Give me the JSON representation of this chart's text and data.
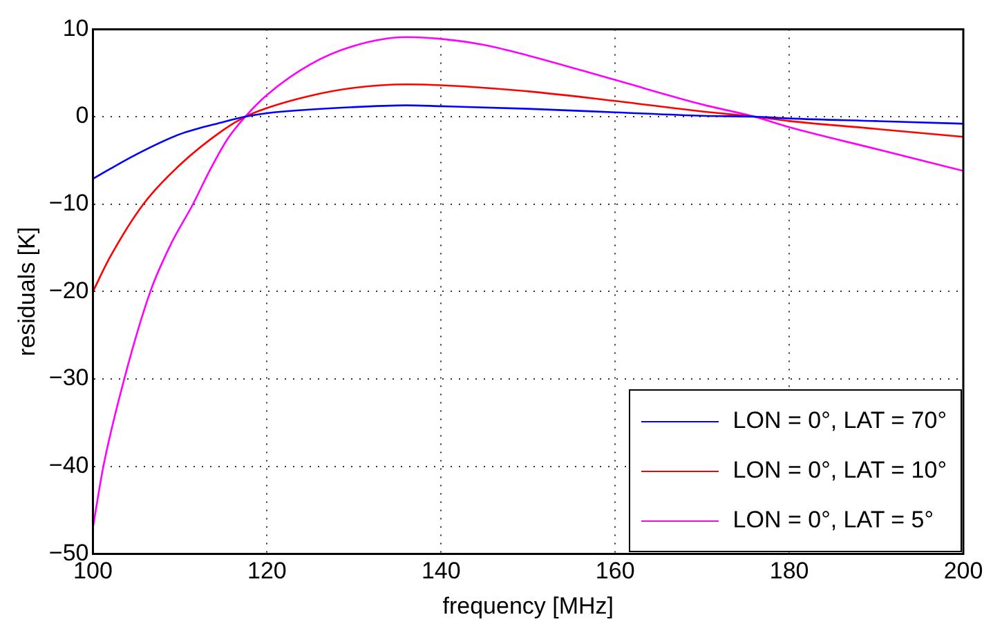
{
  "chart_data": {
    "type": "line",
    "xlabel": "frequency [MHz]",
    "ylabel": "residuals [K]",
    "xlim": [
      100,
      200
    ],
    "xticks": [
      100,
      120,
      140,
      160,
      180,
      200
    ],
    "ylim": [
      -50,
      10
    ],
    "yticks": [
      {
        "value": -50,
        "label": "−50"
      },
      {
        "value": -40,
        "label": "−40"
      },
      {
        "value": -30,
        "label": "−30"
      },
      {
        "value": -20,
        "label": "−20"
      },
      {
        "value": -10,
        "label": "−10"
      },
      0,
      10
    ],
    "grid": true,
    "legend": "bottom right",
    "marker": "none",
    "line_style": "solid",
    "series": [
      {
        "name": "LON = 0°, LAT = 70°",
        "color": "#0000ff",
        "x": [
          100,
          105,
          110,
          115,
          117.5,
          120,
          130,
          136,
          140,
          150,
          160,
          170,
          176,
          180,
          190,
          200
        ],
        "values": [
          -7.1,
          -4.3,
          -2.0,
          -0.6,
          0,
          0.4,
          1.1,
          1.3,
          1.2,
          0.9,
          0.5,
          0.1,
          0,
          -0.2,
          -0.5,
          -0.8
        ]
      },
      {
        "name": "LON = 0°, LAT = 10°",
        "color": "#ff0000",
        "x": [
          100,
          102,
          105.8,
          110,
          115,
          117.5,
          120,
          125,
          130,
          136,
          140,
          150,
          160,
          170,
          176,
          180,
          190,
          200
        ],
        "values": [
          -20,
          -16,
          -10,
          -5.5,
          -1.5,
          0,
          1.0,
          2.4,
          3.3,
          3.7,
          3.6,
          2.9,
          1.8,
          0.6,
          0,
          -0.5,
          -1.4,
          -2.3
        ]
      },
      {
        "name": "LON = 0°, LAT = 5°",
        "color": "#ff00ff",
        "x": [
          100,
          101.2,
          103.6,
          106.6,
          109,
          111.5,
          113.5,
          115.5,
          117.5,
          120,
          125,
          130,
          136,
          140,
          145,
          150,
          160,
          170,
          176,
          180,
          190,
          200
        ],
        "values": [
          -47,
          -40,
          -30,
          -20,
          -14.5,
          -10,
          -6,
          -2.5,
          0,
          2.5,
          6,
          8.1,
          9.1,
          8.9,
          8.2,
          7.0,
          4.2,
          1.4,
          0,
          -1.2,
          -3.7,
          -6.2
        ]
      }
    ]
  }
}
